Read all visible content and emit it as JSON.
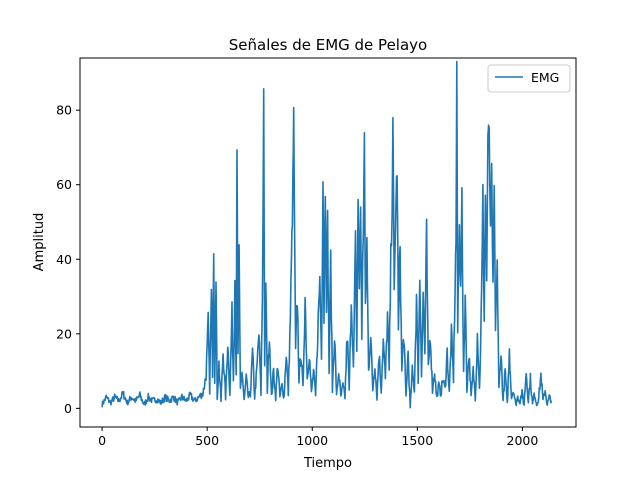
{
  "chart_data": {
    "type": "line",
    "title": "Señales de EMG de Pelayo",
    "xlabel": "Tiempo",
    "ylabel": "Amplitud",
    "xlim": [
      -105,
      2255
    ],
    "ylim": [
      -5,
      94
    ],
    "xticks": [
      0,
      500,
      1000,
      1500,
      2000
    ],
    "yticks": [
      0,
      20,
      40,
      60,
      80
    ],
    "legend": {
      "position": "top-right",
      "entries": [
        "EMG"
      ]
    },
    "grid": false,
    "series": [
      {
        "name": "EMG",
        "color": "#1f77b4",
        "anchors": [
          [
            0,
            1
          ],
          [
            20,
            3
          ],
          [
            40,
            1.5
          ],
          [
            60,
            3
          ],
          [
            80,
            2
          ],
          [
            100,
            4
          ],
          [
            120,
            1.5
          ],
          [
            140,
            3
          ],
          [
            160,
            2
          ],
          [
            180,
            3.5
          ],
          [
            200,
            1
          ],
          [
            220,
            3
          ],
          [
            240,
            2
          ],
          [
            260,
            2.5
          ],
          [
            280,
            1.5
          ],
          [
            300,
            3
          ],
          [
            320,
            2
          ],
          [
            340,
            3
          ],
          [
            360,
            1.5
          ],
          [
            380,
            3
          ],
          [
            400,
            2
          ],
          [
            420,
            3.5
          ],
          [
            440,
            2
          ],
          [
            460,
            3
          ],
          [
            480,
            4
          ],
          [
            495,
            9
          ],
          [
            505,
            23
          ],
          [
            512,
            5
          ],
          [
            520,
            30
          ],
          [
            526,
            10
          ],
          [
            531,
            45
          ],
          [
            536,
            8
          ],
          [
            542,
            33
          ],
          [
            548,
            3
          ],
          [
            556,
            12
          ],
          [
            566,
            2
          ],
          [
            576,
            15
          ],
          [
            588,
            3
          ],
          [
            598,
            18
          ],
          [
            608,
            4
          ],
          [
            618,
            25
          ],
          [
            625,
            8
          ],
          [
            632,
            35
          ],
          [
            638,
            10
          ],
          [
            642,
            67
          ],
          [
            647,
            15
          ],
          [
            652,
            40
          ],
          [
            658,
            5
          ],
          [
            666,
            10
          ],
          [
            676,
            2
          ],
          [
            686,
            8
          ],
          [
            696,
            3
          ],
          [
            706,
            4
          ],
          [
            716,
            15
          ],
          [
            726,
            3
          ],
          [
            736,
            10
          ],
          [
            746,
            20
          ],
          [
            756,
            4
          ],
          [
            763,
            30
          ],
          [
            769,
            85
          ],
          [
            774,
            10
          ],
          [
            779,
            35
          ],
          [
            786,
            5
          ],
          [
            796,
            20
          ],
          [
            806,
            3
          ],
          [
            816,
            10
          ],
          [
            826,
            3
          ],
          [
            836,
            12
          ],
          [
            846,
            3
          ],
          [
            856,
            6
          ],
          [
            866,
            3
          ],
          [
            876,
            15
          ],
          [
            886,
            4
          ],
          [
            896,
            25
          ],
          [
            903,
            45
          ],
          [
            908,
            60
          ],
          [
            912,
            78
          ],
          [
            916,
            45
          ],
          [
            921,
            15
          ],
          [
            929,
            30
          ],
          [
            937,
            8
          ],
          [
            946,
            15
          ],
          [
            956,
            5
          ],
          [
            966,
            30
          ],
          [
            976,
            8
          ],
          [
            986,
            15
          ],
          [
            996,
            4
          ],
          [
            1006,
            10
          ],
          [
            1016,
            3
          ],
          [
            1026,
            20
          ],
          [
            1036,
            35
          ],
          [
            1044,
            15
          ],
          [
            1051,
            62
          ],
          [
            1056,
            25
          ],
          [
            1062,
            60
          ],
          [
            1068,
            30
          ],
          [
            1073,
            50
          ],
          [
            1080,
            10
          ],
          [
            1088,
            40
          ],
          [
            1096,
            5
          ],
          [
            1106,
            20
          ],
          [
            1116,
            3
          ],
          [
            1126,
            10
          ],
          [
            1136,
            3
          ],
          [
            1146,
            6
          ],
          [
            1156,
            3
          ],
          [
            1166,
            20
          ],
          [
            1176,
            5
          ],
          [
            1186,
            30
          ],
          [
            1196,
            10
          ],
          [
            1206,
            45
          ],
          [
            1212,
            15
          ],
          [
            1218,
            57
          ],
          [
            1224,
            30
          ],
          [
            1230,
            55
          ],
          [
            1236,
            20
          ],
          [
            1243,
            48
          ],
          [
            1248,
            73
          ],
          [
            1253,
            25
          ],
          [
            1260,
            45
          ],
          [
            1268,
            10
          ],
          [
            1278,
            20
          ],
          [
            1288,
            5
          ],
          [
            1298,
            12
          ],
          [
            1308,
            3
          ],
          [
            1318,
            15
          ],
          [
            1328,
            5
          ],
          [
            1338,
            18
          ],
          [
            1348,
            8
          ],
          [
            1358,
            25
          ],
          [
            1366,
            10
          ],
          [
            1374,
            40
          ],
          [
            1380,
            55
          ],
          [
            1384,
            75
          ],
          [
            1390,
            30
          ],
          [
            1396,
            50
          ],
          [
            1404,
            65
          ],
          [
            1410,
            20
          ],
          [
            1418,
            45
          ],
          [
            1426,
            10
          ],
          [
            1436,
            20
          ],
          [
            1446,
            3
          ],
          [
            1456,
            15
          ],
          [
            1466,
            0
          ],
          [
            1476,
            10
          ],
          [
            1486,
            5
          ],
          [
            1496,
            30
          ],
          [
            1504,
            8
          ],
          [
            1512,
            35
          ],
          [
            1520,
            10
          ],
          [
            1528,
            30
          ],
          [
            1536,
            15
          ],
          [
            1544,
            47
          ],
          [
            1552,
            10
          ],
          [
            1562,
            20
          ],
          [
            1572,
            5
          ],
          [
            1582,
            10
          ],
          [
            1592,
            3
          ],
          [
            1602,
            6
          ],
          [
            1612,
            4
          ],
          [
            1622,
            8
          ],
          [
            1632,
            5
          ],
          [
            1642,
            15
          ],
          [
            1652,
            4
          ],
          [
            1662,
            20
          ],
          [
            1672,
            8
          ],
          [
            1680,
            35
          ],
          [
            1684,
            45
          ],
          [
            1688,
            89
          ],
          [
            1692,
            20
          ],
          [
            1700,
            52
          ],
          [
            1706,
            30
          ],
          [
            1712,
            55
          ],
          [
            1720,
            10
          ],
          [
            1728,
            30
          ],
          [
            1736,
            5
          ],
          [
            1746,
            15
          ],
          [
            1756,
            3
          ],
          [
            1766,
            10
          ],
          [
            1776,
            3
          ],
          [
            1786,
            20
          ],
          [
            1796,
            5
          ],
          [
            1806,
            30
          ],
          [
            1812,
            57
          ],
          [
            1818,
            25
          ],
          [
            1824,
            58
          ],
          [
            1830,
            35
          ],
          [
            1836,
            70
          ],
          [
            1842,
            76
          ],
          [
            1848,
            45
          ],
          [
            1854,
            62
          ],
          [
            1860,
            30
          ],
          [
            1866,
            58
          ],
          [
            1872,
            20
          ],
          [
            1880,
            40
          ],
          [
            1888,
            5
          ],
          [
            1898,
            15
          ],
          [
            1908,
            2
          ],
          [
            1918,
            10
          ],
          [
            1928,
            1
          ],
          [
            1938,
            15
          ],
          [
            1948,
            3
          ],
          [
            1958,
            5
          ],
          [
            1968,
            1
          ],
          [
            1978,
            3
          ],
          [
            1988,
            2
          ],
          [
            1998,
            4
          ],
          [
            2008,
            1
          ],
          [
            2018,
            10
          ],
          [
            2028,
            2
          ],
          [
            2038,
            8
          ],
          [
            2048,
            1
          ],
          [
            2058,
            4
          ],
          [
            2068,
            1
          ],
          [
            2078,
            3
          ],
          [
            2088,
            9
          ],
          [
            2098,
            2
          ],
          [
            2108,
            5
          ],
          [
            2118,
            1
          ],
          [
            2128,
            3
          ],
          [
            2140,
            2
          ]
        ]
      }
    ]
  }
}
